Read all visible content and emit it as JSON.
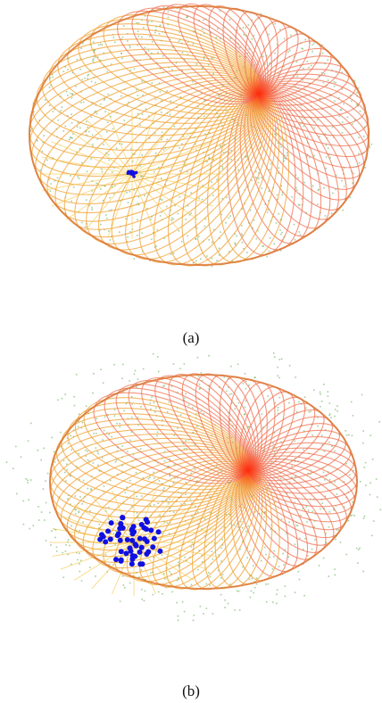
{
  "figure": {
    "subfigures": [
      {
        "caption": "(a)"
      },
      {
        "caption": "(b)"
      }
    ]
  }
}
